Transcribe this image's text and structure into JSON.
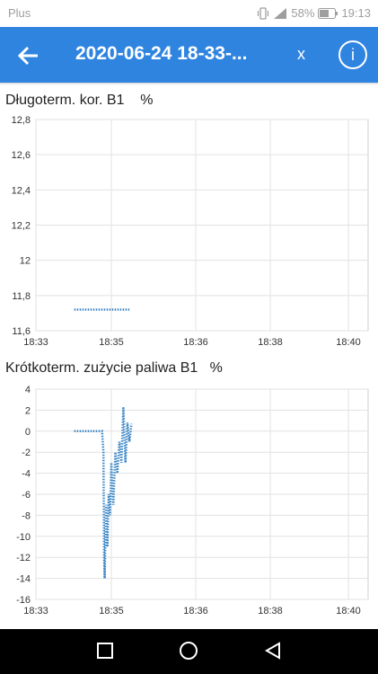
{
  "status": {
    "carrier": "Plus",
    "battery": "58%",
    "time": "19:13",
    "icons": [
      "vibrate-icon",
      "signal-icon",
      "battery-icon"
    ]
  },
  "appbar": {
    "title": "2020-06-24 18-33-...",
    "close_label": "x",
    "info_label": "i",
    "color": "#2f84e0"
  },
  "charts": [
    {
      "title": "Długoterm. kor. B1",
      "unit": "%"
    },
    {
      "title": "Krótkoterm. zużycie paliwa B1",
      "unit": "%"
    }
  ],
  "chart_data": [
    {
      "type": "line",
      "title": "Długoterm. kor. B1",
      "ylabel": "%",
      "xlabel": "",
      "ylim": [
        11.6,
        12.8
      ],
      "yticks": [
        "12,8",
        "12,6",
        "12,4",
        "12,2",
        "12",
        "11,8",
        "11,6"
      ],
      "xticks": [
        "18:33",
        "18:35",
        "18:36",
        "18:38",
        "18:40"
      ],
      "series_color": "#3b86c6",
      "grid": true,
      "series": [
        {
          "points": [
            [
              "18:34:10",
              11.72
            ],
            [
              "18:35:24",
              11.72
            ]
          ]
        }
      ]
    },
    {
      "type": "line",
      "title": "Krótkoterm. zużycie paliwa B1",
      "ylabel": "%",
      "xlabel": "",
      "ylim": [
        -16,
        4
      ],
      "yticks": [
        "4",
        "2",
        "0",
        "-2",
        "-4",
        "-6",
        "-8",
        "-10",
        "-12",
        "-14",
        "-16"
      ],
      "xticks": [
        "18:33",
        "18:35",
        "18:36",
        "18:38",
        "18:40"
      ],
      "series_color": "#3b86c6",
      "grid": true,
      "series": [
        {
          "points": [
            [
              "18:34:10",
              0
            ],
            [
              "18:34:45",
              0
            ],
            [
              "18:34:52",
              0
            ],
            [
              "18:34:54",
              -2
            ],
            [
              "18:34:55",
              -12
            ],
            [
              "18:34:56",
              -14
            ],
            [
              "18:34:58",
              -7
            ],
            [
              "18:35:00",
              -11
            ],
            [
              "18:35:02",
              -6
            ],
            [
              "18:35:04",
              -8
            ],
            [
              "18:35:06",
              -3
            ],
            [
              "18:35:08",
              -7
            ],
            [
              "18:35:10",
              -2
            ],
            [
              "18:35:12",
              -4
            ],
            [
              "18:35:14",
              -1
            ],
            [
              "18:35:16",
              -3
            ],
            [
              "18:35:18",
              2.3
            ],
            [
              "18:35:20",
              -3
            ],
            [
              "18:35:22",
              0.8
            ],
            [
              "18:35:24",
              -1
            ],
            [
              "18:35:26",
              0.7
            ]
          ]
        }
      ]
    }
  ],
  "nav": {
    "buttons": [
      "recent-apps-icon",
      "home-icon",
      "back-nav-icon"
    ]
  }
}
